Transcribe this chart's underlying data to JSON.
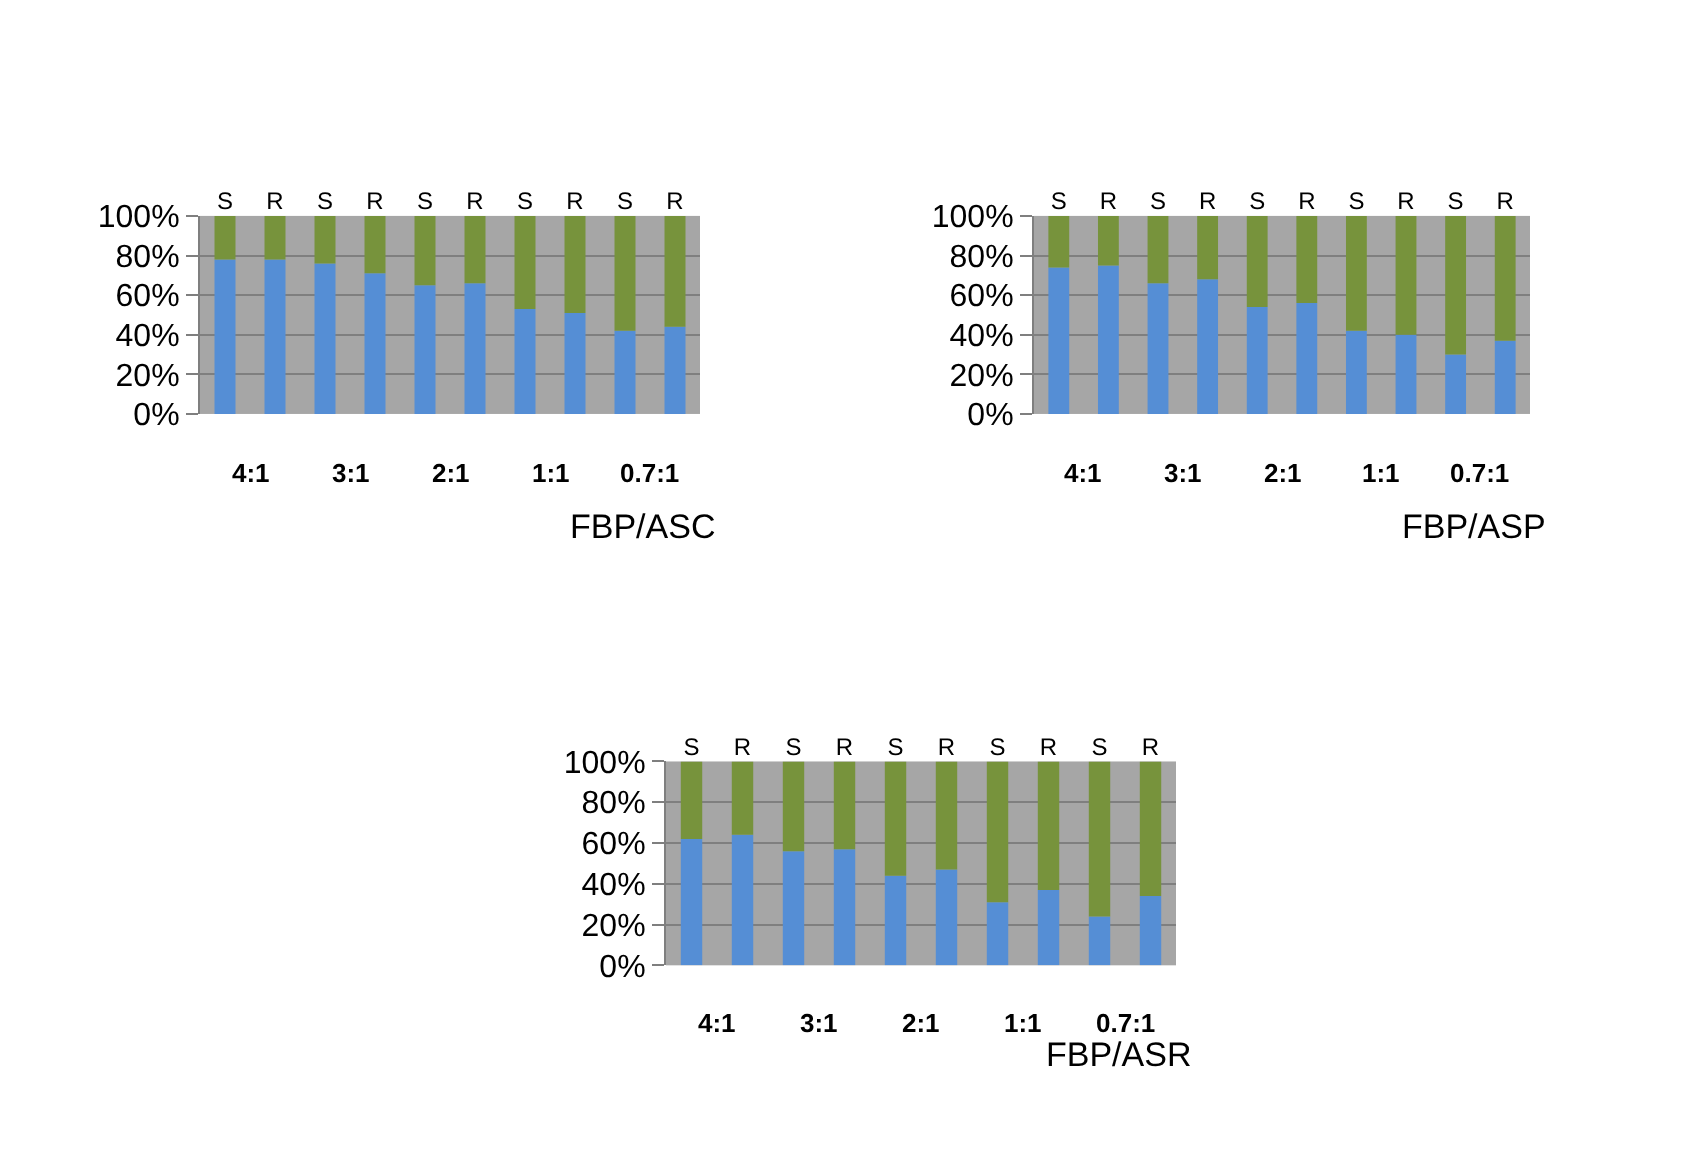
{
  "chart_data": [
    {
      "type": "bar",
      "stacked": true,
      "categories": [
        "S",
        "R",
        "S",
        "R",
        "S",
        "R",
        "S",
        "R",
        "S",
        "R"
      ],
      "xlabel": "FBP/ASC",
      "ylim": [
        0,
        100
      ],
      "yticks": [
        {
          "value": 0,
          "label": "0%"
        },
        {
          "value": 20,
          "label": "20%"
        },
        {
          "value": 40,
          "label": "40%"
        },
        {
          "value": 60,
          "label": "60%"
        },
        {
          "value": 80,
          "label": "80%"
        },
        {
          "value": 100,
          "label": "100%"
        }
      ],
      "grid": "y",
      "annotations": [
        "4:1",
        "3:1",
        "2:1",
        "1:1",
        "0.7:1"
      ],
      "series": [
        {
          "color": "#558ed5",
          "values": [
            78,
            78,
            76,
            71,
            65,
            66,
            53,
            51,
            42,
            44
          ]
        },
        {
          "color": "#77933c",
          "values": [
            22,
            22,
            24,
            29,
            35,
            34,
            47,
            49,
            58,
            56
          ]
        }
      ]
    },
    {
      "type": "bar",
      "stacked": true,
      "categories": [
        "S",
        "R",
        "S",
        "R",
        "S",
        "R",
        "S",
        "R",
        "S",
        "R"
      ],
      "xlabel": "FBP/ASP",
      "ylim": [
        0,
        100
      ],
      "yticks": [
        {
          "value": 0,
          "label": "0%"
        },
        {
          "value": 20,
          "label": "20%"
        },
        {
          "value": 40,
          "label": "40%"
        },
        {
          "value": 60,
          "label": "60%"
        },
        {
          "value": 80,
          "label": "80%"
        },
        {
          "value": 100,
          "label": "100%"
        }
      ],
      "grid": "y",
      "annotations": [
        "4:1",
        "3:1",
        "2:1",
        "1:1",
        "0.7:1"
      ],
      "series": [
        {
          "color": "#558ed5",
          "values": [
            74,
            75,
            66,
            68,
            54,
            56,
            42,
            40,
            30,
            37
          ]
        },
        {
          "color": "#77933c",
          "values": [
            26,
            25,
            34,
            32,
            46,
            44,
            58,
            60,
            70,
            63
          ]
        }
      ]
    },
    {
      "type": "bar",
      "stacked": true,
      "categories": [
        "S",
        "R",
        "S",
        "R",
        "S",
        "R",
        "S",
        "R",
        "S",
        "R"
      ],
      "xlabel": "FBP/ASR",
      "ylim": [
        0,
        100
      ],
      "yticks": [
        {
          "value": 0,
          "label": "0%"
        },
        {
          "value": 20,
          "label": "20%"
        },
        {
          "value": 40,
          "label": "40%"
        },
        {
          "value": 60,
          "label": "60%"
        },
        {
          "value": 80,
          "label": "80%"
        },
        {
          "value": 100,
          "label": "100%"
        }
      ],
      "grid": "y",
      "annotations": [
        "4:1",
        "3:1",
        "2:1",
        "1:1",
        "0.7:1"
      ],
      "series": [
        {
          "color": "#558ed5",
          "values": [
            62,
            64,
            56,
            57,
            44,
            47,
            31,
            37,
            24,
            34
          ]
        },
        {
          "color": "#77933c",
          "values": [
            38,
            36,
            44,
            43,
            56,
            53,
            69,
            63,
            76,
            66
          ]
        }
      ]
    }
  ]
}
